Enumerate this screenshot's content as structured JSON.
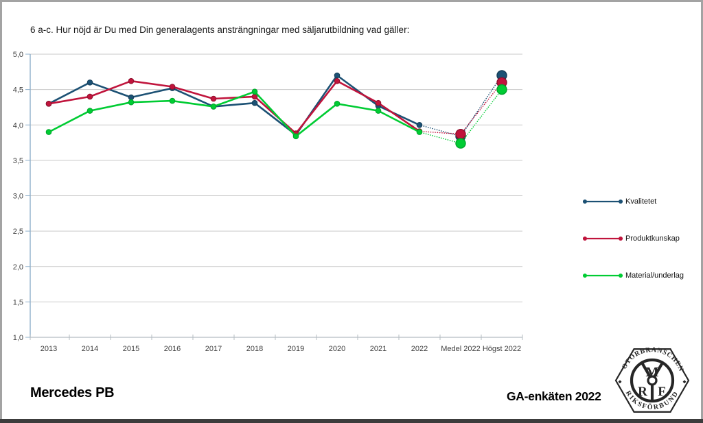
{
  "header": {
    "title": "6 a-c. Hur nöjd är Du med Din generalagents ansträngningar med säljarutbildning vad gäller:"
  },
  "footer": {
    "left": "Mercedes PB",
    "right": "GA-enkäten 2022"
  },
  "logo": {
    "top_text": "MOTORBRANSCHENS",
    "bottom_text": "RIKSFÖRBUND",
    "letter_m": "M",
    "letter_r": "R",
    "letter_f": "F",
    "separator": "◆"
  },
  "colors": {
    "gridline": "#c9c9c9",
    "y_axis": "#8fafca",
    "x_axis": "#b4bcc2",
    "tick_text": "#3f3f3f",
    "border": "#a3a3a3",
    "bottom_bar": "#3c3c3c"
  },
  "chart_data": {
    "type": "line",
    "title": "6 a-c. Hur nöjd är Du med Din generalagents ansträngningar med säljarutbildning vad gäller:",
    "categories": [
      "2013",
      "2014",
      "2015",
      "2016",
      "2017",
      "2018",
      "2019",
      "2020",
      "2021",
      "2022",
      "Medel 2022",
      "Högst 2022"
    ],
    "series": [
      {
        "name": "Kvalitetet",
        "color": "#1c5174",
        "marker_stroke": "#143c57",
        "values": [
          4.3,
          4.6,
          4.39,
          4.52,
          4.26,
          4.31,
          3.86,
          4.7,
          4.27,
          4.0,
          3.84,
          4.7
        ]
      },
      {
        "name": "Produktkunskap",
        "color": "#c0143c",
        "marker_stroke": "#8e0f2c",
        "values": [
          4.3,
          4.4,
          4.62,
          4.54,
          4.37,
          4.4,
          3.88,
          4.62,
          4.31,
          3.91,
          3.87,
          4.6
        ]
      },
      {
        "name": "Material/underlag",
        "color": "#00cc33",
        "marker_stroke": "#00a32a",
        "values": [
          3.9,
          4.2,
          4.32,
          4.34,
          4.26,
          4.47,
          3.84,
          4.3,
          4.2,
          3.9,
          3.74,
          4.5
        ]
      }
    ],
    "ylim": [
      1.0,
      5.0
    ],
    "ytick_step": 0.5,
    "decimal_separator": ",",
    "dotted_from_index": 9,
    "big_marker_from_index": 10,
    "grid": "horizontal",
    "legend_position": "right"
  }
}
